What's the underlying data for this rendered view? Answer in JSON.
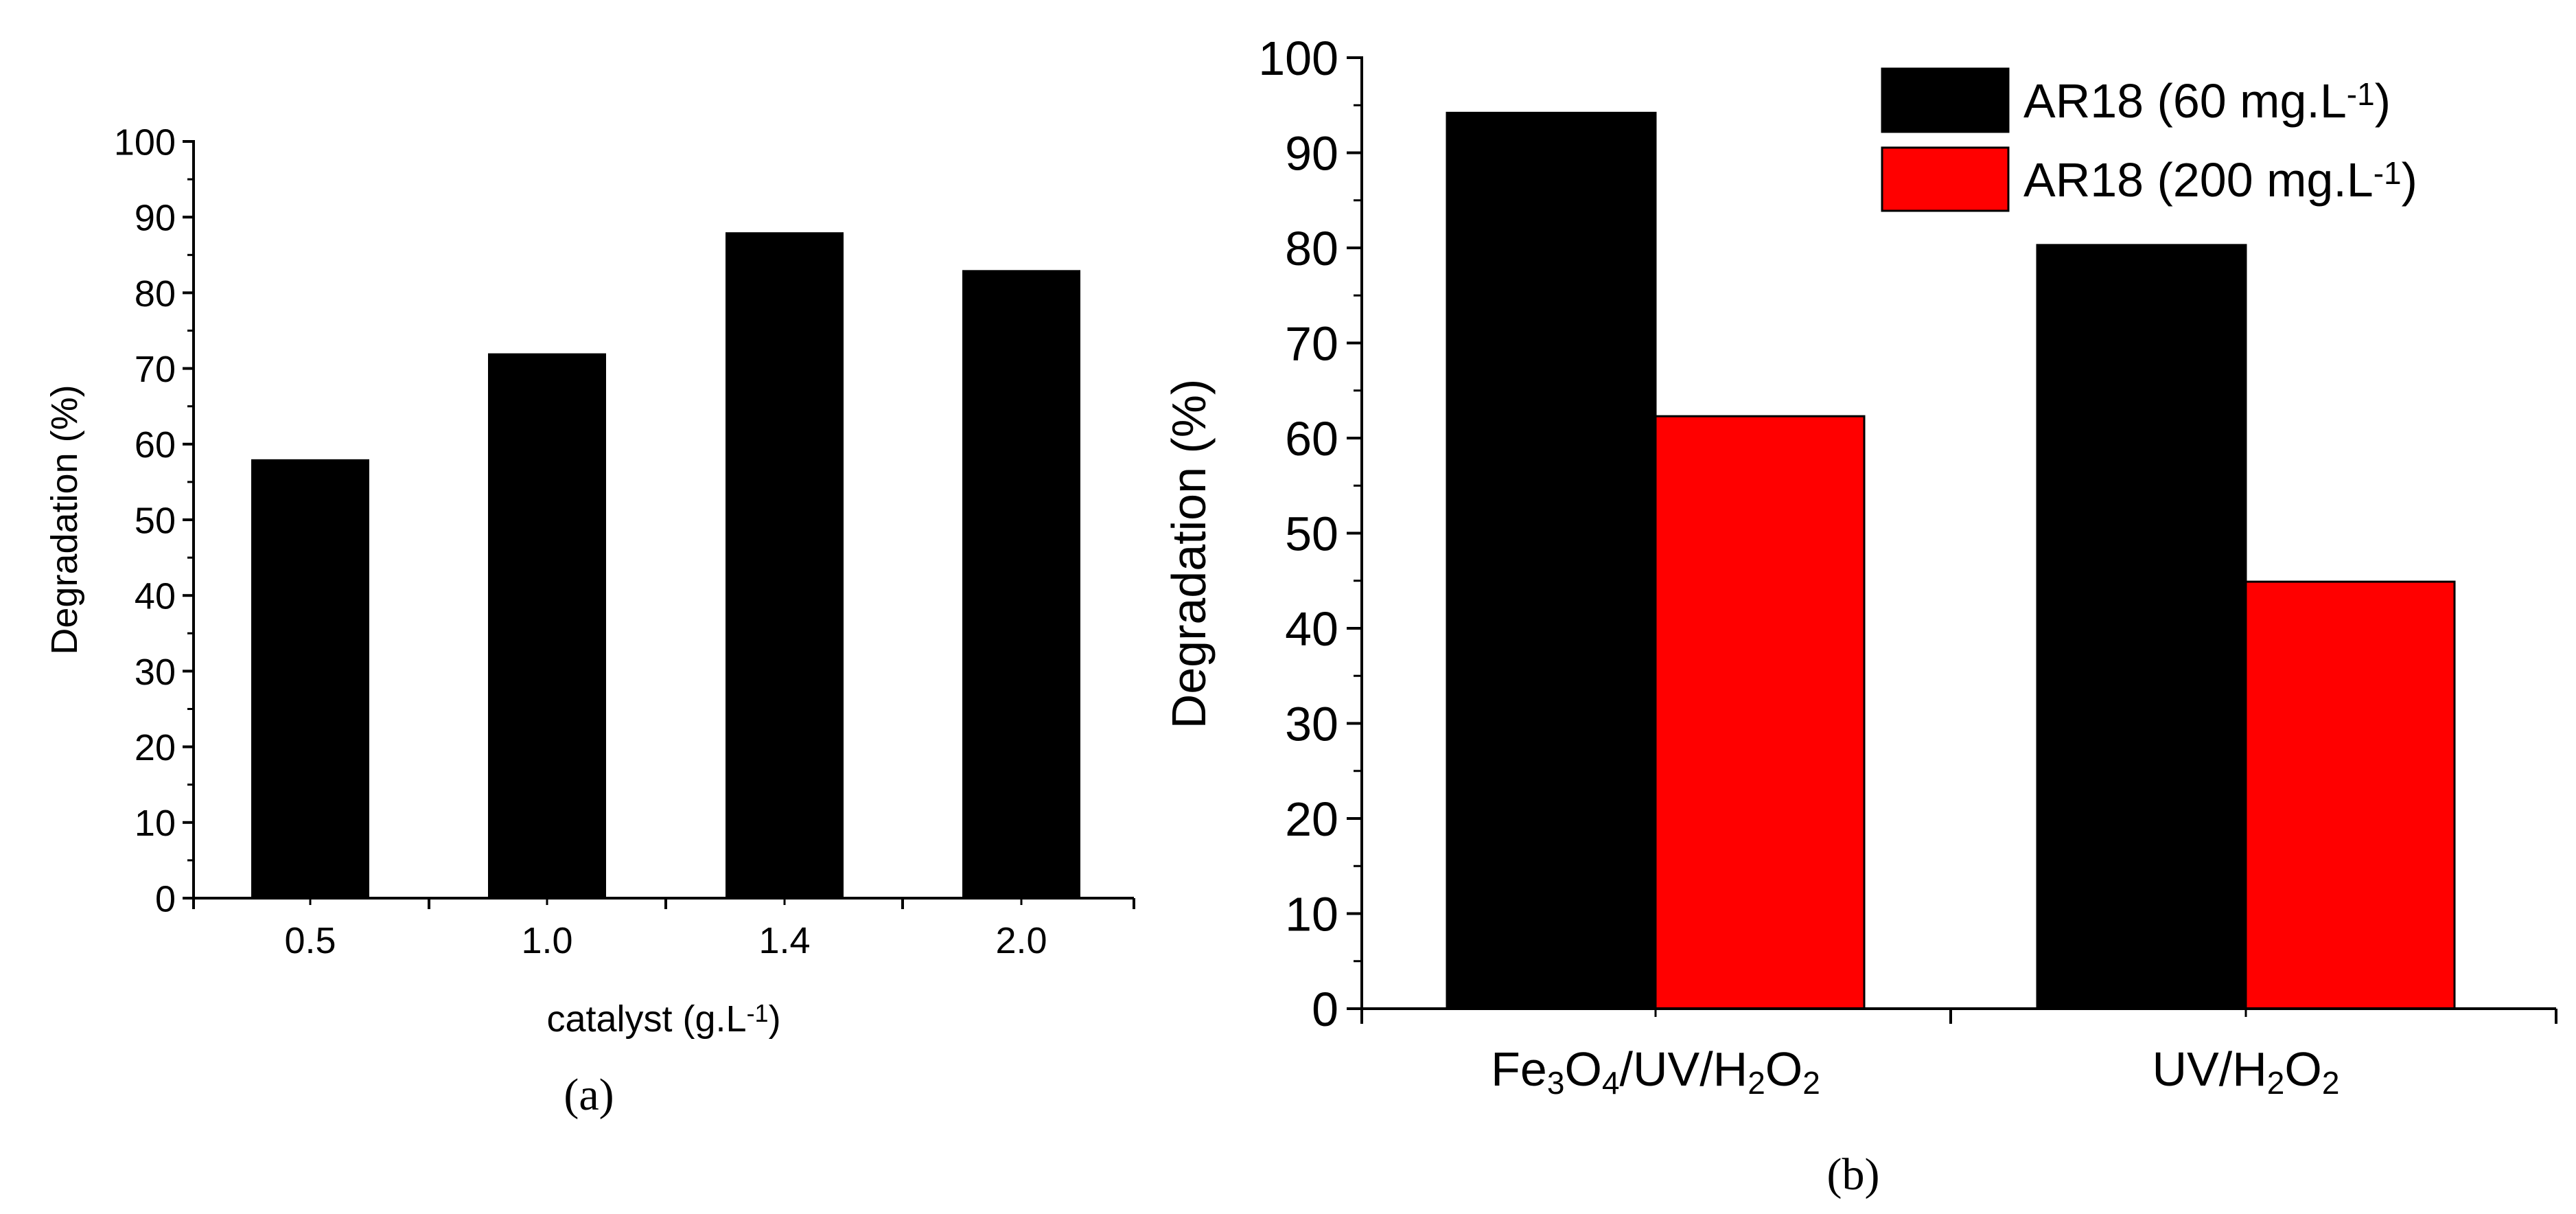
{
  "chart_data": [
    {
      "type": "bar",
      "panel_label": "(a)",
      "xlabel": "catalyst (g.L",
      "xlabel_sup": "-1",
      "xlabel_close": ")",
      "ylabel": "Degradation (%)",
      "ylim": [
        0,
        100
      ],
      "yticks": [
        "0",
        "10",
        "20",
        "30",
        "40",
        "50",
        "60",
        "70",
        "80",
        "90",
        "100"
      ],
      "categories": [
        "0.5",
        "1.0",
        "1.4",
        "2.0"
      ],
      "values": [
        58,
        72,
        88,
        83
      ],
      "colors": {
        "bar": "#000000"
      },
      "grid": false
    },
    {
      "type": "bar",
      "panel_label": "(b)",
      "ylabel": "Degradation (%)",
      "ylim": [
        0,
        100
      ],
      "yticks": [
        "0",
        "10",
        "20",
        "30",
        "40",
        "50",
        "60",
        "70",
        "80",
        "90",
        "100"
      ],
      "categories": [
        {
          "parts": [
            [
              "Fe",
              ""
            ],
            [
              "3",
              "sub"
            ],
            [
              "O",
              ""
            ],
            [
              "4",
              "sub"
            ],
            [
              "/UV/H",
              ""
            ],
            [
              "2",
              "sub"
            ],
            [
              "O",
              ""
            ],
            [
              "2",
              "sub"
            ]
          ]
        },
        {
          "parts": [
            [
              "UV/H",
              ""
            ],
            [
              "2",
              "sub"
            ],
            [
              "O",
              ""
            ],
            [
              "2",
              "sub"
            ]
          ]
        }
      ],
      "series": [
        {
          "name": "AR18 (60 mg.L",
          "name_sup": "-1",
          "name_close": ")",
          "color": "#000000",
          "values": [
            94.2,
            80.3
          ]
        },
        {
          "name": "AR18 (200 mg.L",
          "name_sup": "-1",
          "name_close": ")",
          "color": "#ff0000",
          "values": [
            62.3,
            44.9
          ]
        }
      ],
      "legend_position": "top-right",
      "grid": false
    }
  ]
}
